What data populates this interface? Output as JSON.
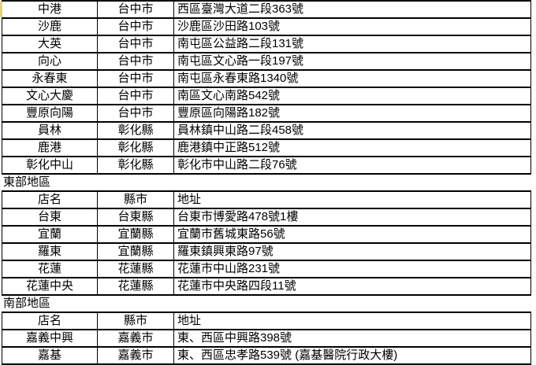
{
  "document": {
    "description_label": "branch address table",
    "highlight_color": "#e6d07e",
    "border_color": "#000000",
    "text_color": "#000000"
  },
  "columns": {
    "name": "店名",
    "county": "縣市",
    "address": "地址"
  },
  "sections": [
    {
      "label": "",
      "header": false,
      "rows": [
        {
          "name": "中港",
          "county": "台中市",
          "address": "西區臺灣大道二段363號"
        },
        {
          "name": "沙鹿",
          "county": "台中市",
          "address": "沙鹿區沙田路103號"
        },
        {
          "name": "大英",
          "county": "台中市",
          "address": "南屯區公益路二段131號"
        },
        {
          "name": "向心",
          "county": "台中市",
          "address": "南屯區文心路一段197號"
        },
        {
          "name": "永春東",
          "county": "台中市",
          "address": "南屯區永春東路1340號"
        },
        {
          "name": "文心大慶",
          "county": "台中市",
          "address": "南區文心南路542號"
        },
        {
          "name": "豐原向陽",
          "county": "台中市",
          "address": "豐原區向陽路182號"
        },
        {
          "name": "員林",
          "county": "彰化縣",
          "address": "員林鎮中山路二段458號"
        },
        {
          "name": "鹿港",
          "county": "彰化縣",
          "address": "鹿港鎮中正路512號"
        },
        {
          "name": "彰化中山",
          "county": "彰化縣",
          "address": "彰化市中山路二段76號"
        }
      ]
    },
    {
      "label": "東部地區",
      "header": true,
      "rows": [
        {
          "name": "台東",
          "county": "台東縣",
          "address": "台東市博愛路478號1樓"
        },
        {
          "name": "宜蘭",
          "county": "宜蘭縣",
          "address": "宜蘭市舊城東路56號"
        },
        {
          "name": "羅東",
          "county": "宜蘭縣",
          "address": "羅東鎮興東路97號"
        },
        {
          "name": "花蓮",
          "county": "花蓮縣",
          "address": "花蓮市中山路231號"
        },
        {
          "name": "花蓮中央",
          "county": "花蓮縣",
          "address": "花蓮市中央路四段11號"
        }
      ]
    },
    {
      "label": "南部地區",
      "header": true,
      "rows": [
        {
          "name": "嘉義中興",
          "county": "嘉義市",
          "address": "東、西區中興路398號"
        },
        {
          "name": "嘉基",
          "county": "嘉義市",
          "address": "東、西區忠孝路539號 (嘉基醫院行政大樓)"
        }
      ]
    }
  ]
}
